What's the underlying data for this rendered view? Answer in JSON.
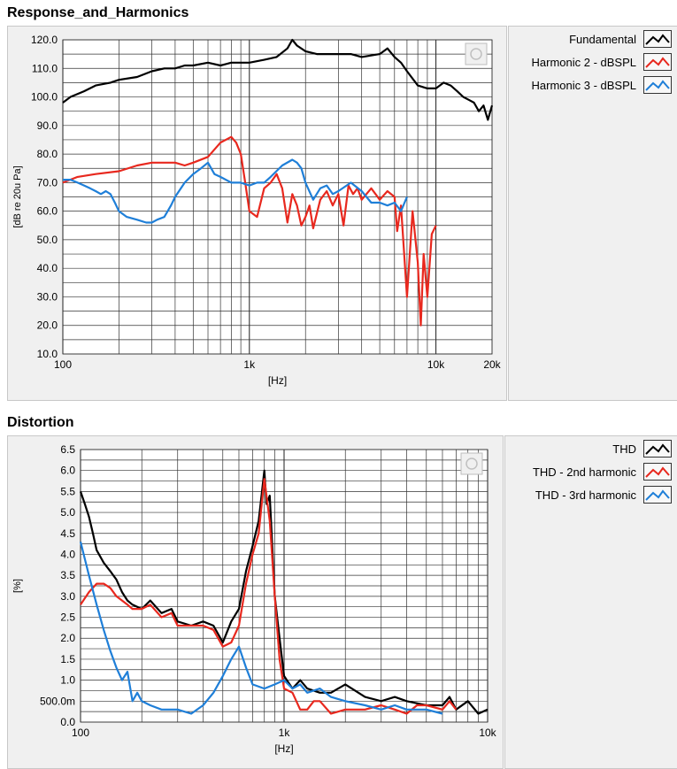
{
  "sections": {
    "response_title": "Response_and_Harmonics",
    "distortion_title": "Distortion"
  },
  "chart_data": [
    {
      "type": "line",
      "title": "Response_and_Harmonics",
      "xlabel": "[Hz]",
      "ylabel": "[dB re 20u Pa]",
      "xscale": "log",
      "xlim": [
        100,
        20000
      ],
      "ylim": [
        10,
        120
      ],
      "xticks": [
        100,
        1000,
        10000,
        20000
      ],
      "xtick_labels": [
        "100",
        "1k",
        "10k",
        "20k"
      ],
      "yticks": [
        10,
        20,
        30,
        40,
        50,
        60,
        70,
        80,
        90,
        100,
        110,
        120
      ],
      "ytick_labels": [
        "10.0",
        "20.0",
        "30.0",
        "40.0",
        "50.0",
        "60.0",
        "70.0",
        "80.0",
        "90.0",
        "100.0",
        "110.0",
        "120.0"
      ],
      "grid": true,
      "legend_position": "right",
      "series": [
        {
          "name": "Fundamental",
          "color": "#000000",
          "x": [
            100,
            110,
            130,
            150,
            180,
            200,
            250,
            300,
            350,
            400,
            450,
            500,
            600,
            700,
            800,
            900,
            1000,
            1200,
            1400,
            1600,
            1700,
            1800,
            2000,
            2300,
            2600,
            3000,
            3500,
            4000,
            5000,
            5500,
            6000,
            6500,
            7000,
            8000,
            9000,
            10000,
            11000,
            12000,
            13000,
            14000,
            15000,
            16000,
            17000,
            18000,
            19000,
            20000
          ],
          "y": [
            98,
            100,
            102,
            104,
            105,
            106,
            107,
            109,
            110,
            110,
            111,
            111,
            112,
            111,
            112,
            112,
            112,
            113,
            114,
            117,
            120,
            118,
            116,
            115,
            115,
            115,
            115,
            114,
            115,
            117,
            114,
            112,
            109,
            104,
            103,
            103,
            105,
            104,
            102,
            100,
            99,
            98,
            95,
            97,
            92,
            97
          ]
        },
        {
          "name": "Harmonic 2 - dBSPL",
          "color": "#e8281e",
          "x": [
            100,
            120,
            150,
            200,
            250,
            300,
            350,
            400,
            450,
            500,
            600,
            700,
            800,
            850,
            900,
            950,
            1000,
            1100,
            1200,
            1300,
            1400,
            1500,
            1600,
            1700,
            1800,
            1900,
            2000,
            2100,
            2200,
            2400,
            2600,
            2800,
            3000,
            3200,
            3400,
            3600,
            3800,
            4000,
            4500,
            5000,
            5500,
            6000,
            6200,
            6500,
            7000,
            7500,
            8000,
            8300,
            8600,
            9000,
            9500,
            10000
          ],
          "y": [
            70,
            72,
            73,
            74,
            76,
            77,
            77,
            77,
            76,
            77,
            79,
            84,
            86,
            84,
            80,
            70,
            60,
            58,
            68,
            70,
            73,
            68,
            56,
            66,
            62,
            55,
            58,
            62,
            54,
            64,
            67,
            62,
            66,
            55,
            69,
            66,
            68,
            64,
            68,
            64,
            67,
            65,
            53,
            62,
            30,
            60,
            42,
            20,
            45,
            30,
            52,
            55
          ]
        },
        {
          "name": "Harmonic 3 - dBSPL",
          "color": "#1f7fd8",
          "x": [
            100,
            110,
            120,
            130,
            140,
            150,
            160,
            170,
            180,
            190,
            200,
            220,
            250,
            280,
            300,
            320,
            350,
            380,
            400,
            450,
            500,
            550,
            600,
            650,
            700,
            800,
            900,
            1000,
            1100,
            1200,
            1300,
            1500,
            1700,
            1800,
            1900,
            2000,
            2200,
            2400,
            2600,
            2800,
            3000,
            3500,
            4000,
            4500,
            5000,
            5500,
            6000,
            6500,
            7000
          ],
          "y": [
            71,
            71,
            70,
            69,
            68,
            67,
            66,
            67,
            66,
            63,
            60,
            58,
            57,
            56,
            56,
            57,
            58,
            62,
            65,
            70,
            73,
            75,
            77,
            73,
            72,
            70,
            70,
            69,
            70,
            70,
            72,
            76,
            78,
            77,
            75,
            70,
            64,
            68,
            69,
            66,
            67,
            70,
            67,
            63,
            63,
            62,
            63,
            60,
            65
          ]
        }
      ]
    },
    {
      "type": "line",
      "title": "Distortion",
      "xlabel": "[Hz]",
      "ylabel": "[%]",
      "xscale": "log",
      "xlim": [
        100,
        10000
      ],
      "ylim": [
        0,
        6.5
      ],
      "xticks": [
        100,
        1000,
        10000
      ],
      "xtick_labels": [
        "100",
        "1k",
        "10k"
      ],
      "yticks": [
        0,
        0.5,
        1.0,
        1.5,
        2.0,
        2.5,
        3.0,
        3.5,
        4.0,
        4.5,
        5.0,
        5.5,
        6.0,
        6.5
      ],
      "ytick_labels": [
        "0.0",
        "500.0m",
        "1.0",
        "1.5",
        "2.0",
        "2.5",
        "3.0",
        "3.5",
        "4.0",
        "4.5",
        "5.0",
        "5.5",
        "6.0",
        "6.5"
      ],
      "grid": true,
      "legend_position": "right",
      "series": [
        {
          "name": "THD",
          "color": "#000000",
          "x": [
            100,
            105,
            110,
            115,
            120,
            130,
            140,
            150,
            160,
            170,
            180,
            200,
            220,
            250,
            280,
            300,
            350,
            400,
            450,
            500,
            550,
            600,
            650,
            700,
            750,
            800,
            820,
            850,
            900,
            950,
            1000,
            1100,
            1200,
            1300,
            1500,
            1700,
            2000,
            2500,
            3000,
            3500,
            4000,
            5000,
            6000,
            6500,
            7000,
            8000,
            9000,
            10000
          ],
          "y": [
            5.5,
            5.2,
            4.9,
            4.5,
            4.1,
            3.8,
            3.6,
            3.4,
            3.1,
            2.9,
            2.8,
            2.7,
            2.9,
            2.6,
            2.7,
            2.4,
            2.3,
            2.4,
            2.3,
            1.9,
            2.4,
            2.7,
            3.6,
            4.2,
            4.8,
            6.0,
            5.2,
            5.4,
            3.0,
            2.0,
            1.1,
            0.8,
            1.0,
            0.8,
            0.7,
            0.7,
            0.9,
            0.6,
            0.5,
            0.6,
            0.5,
            0.4,
            0.4,
            0.6,
            0.3,
            0.5,
            0.2,
            0.3
          ]
        },
        {
          "name": "THD - 2nd harmonic",
          "color": "#e8281e",
          "x": [
            100,
            110,
            120,
            130,
            140,
            150,
            170,
            180,
            200,
            220,
            250,
            280,
            300,
            350,
            400,
            450,
            500,
            550,
            600,
            650,
            700,
            750,
            800,
            850,
            900,
            950,
            1000,
            1100,
            1200,
            1300,
            1400,
            1500,
            1700,
            2000,
            2500,
            3000,
            3500,
            4000,
            4500,
            5000,
            6000,
            6500,
            7000
          ],
          "y": [
            2.8,
            3.1,
            3.3,
            3.3,
            3.2,
            3.0,
            2.8,
            2.7,
            2.7,
            2.8,
            2.5,
            2.6,
            2.3,
            2.3,
            2.3,
            2.2,
            1.8,
            1.9,
            2.3,
            3.3,
            4.0,
            4.5,
            5.8,
            4.8,
            3.0,
            1.5,
            0.8,
            0.7,
            0.3,
            0.3,
            0.5,
            0.5,
            0.2,
            0.3,
            0.3,
            0.4,
            0.3,
            0.2,
            0.4,
            0.4,
            0.3,
            0.5,
            0.3
          ]
        },
        {
          "name": "THD - 3rd harmonic",
          "color": "#1f7fd8",
          "x": [
            100,
            110,
            120,
            130,
            140,
            150,
            160,
            170,
            180,
            190,
            200,
            220,
            250,
            280,
            300,
            350,
            400,
            450,
            500,
            550,
            600,
            650,
            700,
            800,
            900,
            1000,
            1100,
            1200,
            1300,
            1500,
            1700,
            2000,
            2500,
            3000,
            3500,
            4000,
            5000,
            6000
          ],
          "y": [
            4.3,
            3.5,
            2.8,
            2.2,
            1.7,
            1.3,
            1.0,
            1.2,
            0.5,
            0.7,
            0.5,
            0.4,
            0.3,
            0.3,
            0.3,
            0.2,
            0.4,
            0.7,
            1.1,
            1.5,
            1.8,
            1.3,
            0.9,
            0.8,
            0.9,
            1.0,
            0.8,
            0.9,
            0.7,
            0.8,
            0.6,
            0.5,
            0.4,
            0.3,
            0.4,
            0.3,
            0.3,
            0.2
          ]
        }
      ]
    }
  ],
  "legend_icons": [
    "line-swatch-icon",
    "line-swatch-icon",
    "line-swatch-icon"
  ],
  "watermark_icon": "graph-tool-icon"
}
